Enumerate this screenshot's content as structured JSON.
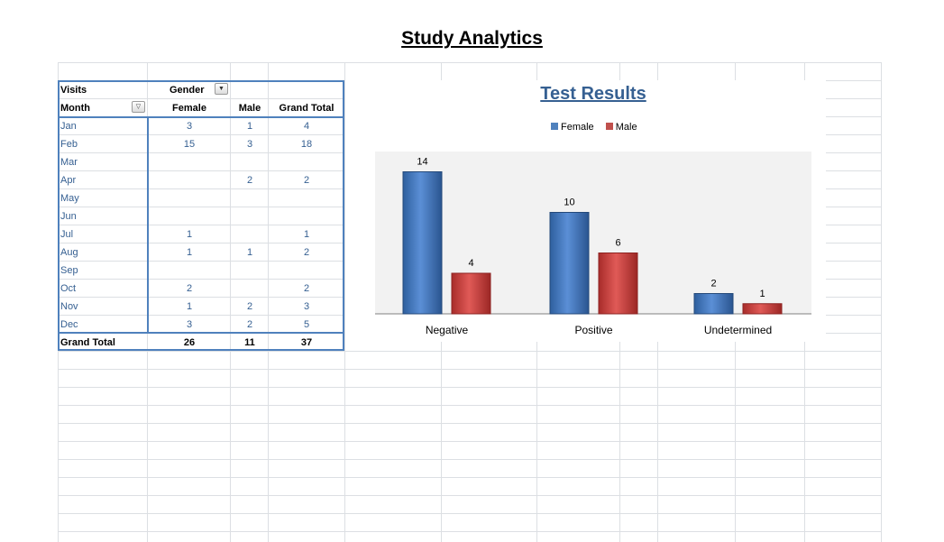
{
  "sheet": {
    "title": "Study Analytics"
  },
  "pivot": {
    "corner_label": "Visits",
    "column_field": "Gender",
    "row_field": "Month",
    "headers": [
      "Female",
      "Male",
      "Grand Total"
    ],
    "rows": [
      {
        "month": "Jan",
        "female": "3",
        "male": "1",
        "total": "4"
      },
      {
        "month": "Feb",
        "female": "15",
        "male": "3",
        "total": "18"
      },
      {
        "month": "Mar",
        "female": "",
        "male": "",
        "total": ""
      },
      {
        "month": "Apr",
        "female": "",
        "male": "2",
        "total": "2"
      },
      {
        "month": "May",
        "female": "",
        "male": "",
        "total": ""
      },
      {
        "month": "Jun",
        "female": "",
        "male": "",
        "total": ""
      },
      {
        "month": "Jul",
        "female": "1",
        "male": "",
        "total": "1"
      },
      {
        "month": "Aug",
        "female": "1",
        "male": "1",
        "total": "2"
      },
      {
        "month": "Sep",
        "female": "",
        "male": "",
        "total": ""
      },
      {
        "month": "Oct",
        "female": "2",
        "male": "",
        "total": "2"
      },
      {
        "month": "Nov",
        "female": "1",
        "male": "2",
        "total": "3"
      },
      {
        "month": "Dec",
        "female": "3",
        "male": "2",
        "total": "5"
      }
    ],
    "grand_total": {
      "label": "Grand Total",
      "female": "26",
      "male": "11",
      "total": "37"
    }
  },
  "chart_data": {
    "type": "bar",
    "title": "Test Results",
    "categories": [
      "Negative",
      "Positive",
      "Undetermined"
    ],
    "series": [
      {
        "name": "Female",
        "values": [
          14,
          10,
          2
        ],
        "color": "#4f81bd"
      },
      {
        "name": "Male",
        "values": [
          4,
          6,
          1
        ],
        "color": "#c0504d"
      }
    ],
    "legend": "top",
    "grid": false,
    "ylim": [
      0,
      15
    ]
  }
}
